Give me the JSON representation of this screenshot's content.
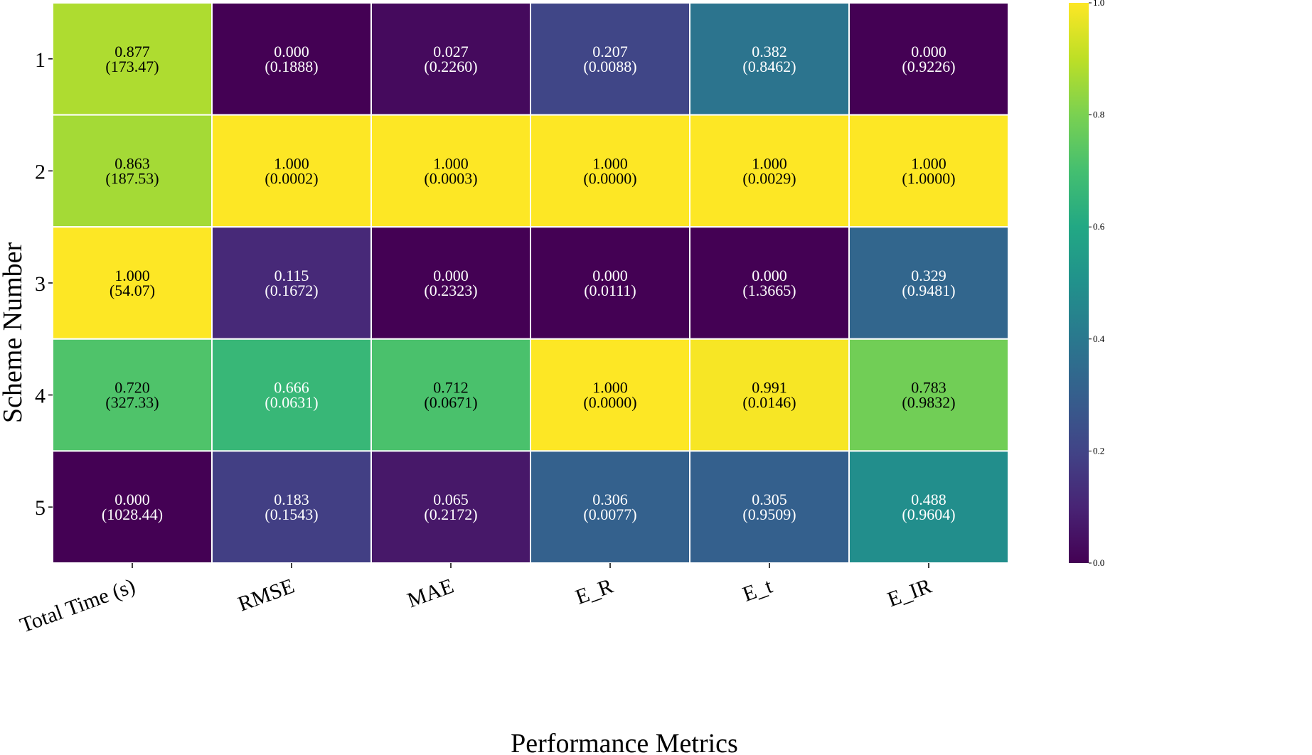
{
  "chart_data": {
    "type": "heatmap",
    "colormap": "viridis",
    "xlabel": "Performance Metrics",
    "ylabel": "Scheme Number",
    "x_categories": [
      "Total Time (s)",
      "RMSE",
      "MAE",
      "E_R",
      "E_t",
      "E_IR"
    ],
    "y_categories": [
      "1",
      "2",
      "3",
      "4",
      "5"
    ],
    "values": [
      [
        0.877,
        0.0,
        0.027,
        0.207,
        0.382,
        0.0
      ],
      [
        0.863,
        1.0,
        1.0,
        1.0,
        1.0,
        1.0
      ],
      [
        1.0,
        0.115,
        0.0,
        0.0,
        0.0,
        0.329
      ],
      [
        0.72,
        0.666,
        0.712,
        1.0,
        0.991,
        0.783
      ],
      [
        0.0,
        0.183,
        0.065,
        0.306,
        0.305,
        0.488
      ]
    ],
    "value_labels": [
      [
        "0.877",
        "0.000",
        "0.027",
        "0.207",
        "0.382",
        "0.000"
      ],
      [
        "0.863",
        "1.000",
        "1.000",
        "1.000",
        "1.000",
        "1.000"
      ],
      [
        "1.000",
        "0.115",
        "0.000",
        "0.000",
        "0.000",
        "0.329"
      ],
      [
        "0.720",
        "0.666",
        "0.712",
        "1.000",
        "0.991",
        "0.783"
      ],
      [
        "0.000",
        "0.183",
        "0.065",
        "0.306",
        "0.305",
        "0.488"
      ]
    ],
    "raw_labels": [
      [
        "(173.47)",
        "(0.1888)",
        "(0.2260)",
        "(0.0088)",
        "(0.8462)",
        "(0.9226)"
      ],
      [
        "(187.53)",
        "(0.0002)",
        "(0.0003)",
        "(0.0000)",
        "(0.0029)",
        "(1.0000)"
      ],
      [
        "(54.07)",
        "(0.1672)",
        "(0.2323)",
        "(0.0111)",
        "(1.3665)",
        "(0.9481)"
      ],
      [
        "(327.33)",
        "(0.0631)",
        "(0.0671)",
        "(0.0000)",
        "(0.0146)",
        "(0.9832)"
      ],
      [
        "(1028.44)",
        "(0.1543)",
        "(0.2172)",
        "(0.0077)",
        "(0.9509)",
        "(0.9604)"
      ]
    ],
    "colorbar": {
      "range": [
        0.0,
        1.0
      ],
      "ticks": [
        "0.0",
        "0.2",
        "0.4",
        "0.6",
        "0.8",
        "1.0"
      ]
    }
  }
}
